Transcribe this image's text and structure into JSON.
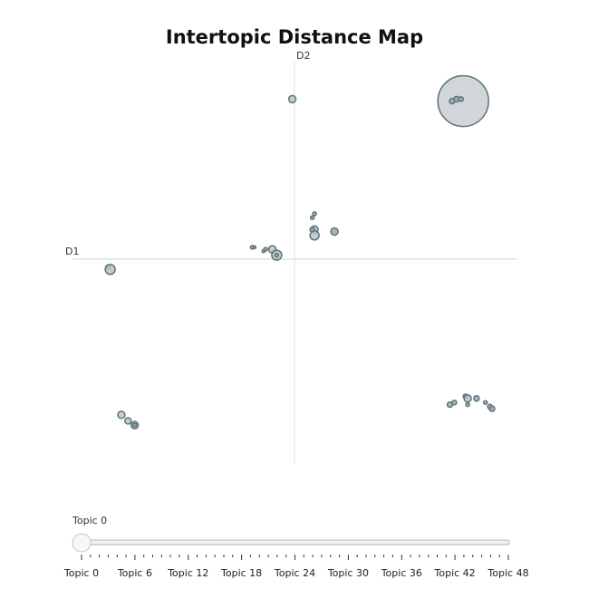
{
  "chart_data": {
    "type": "scatter",
    "title": "Intertopic Distance Map",
    "x_axis_label": "D1",
    "y_axis_label": "D2",
    "xlim": [
      -10,
      10
    ],
    "ylim": [
      -10,
      10
    ],
    "grid": false,
    "points": [
      {
        "x": 7.6,
        "y": 8.0,
        "size": 28,
        "fill": "#c9cfd4"
      },
      {
        "x": 7.1,
        "y": 8.0,
        "size": 3,
        "fill": "#9aa8ae"
      },
      {
        "x": 7.3,
        "y": 8.1,
        "size": 3,
        "fill": "#9aa8ae"
      },
      {
        "x": 7.5,
        "y": 8.1,
        "size": 2.5,
        "fill": "#9aa8ae"
      },
      {
        "x": -0.1,
        "y": 8.1,
        "size": 4,
        "fill": "#b9c3c8"
      },
      {
        "x": 0.9,
        "y": 2.3,
        "size": 2,
        "fill": "#9aa8ae"
      },
      {
        "x": 0.8,
        "y": 2.1,
        "size": 2,
        "fill": "#9aa8ae"
      },
      {
        "x": 0.9,
        "y": 1.5,
        "size": 4,
        "fill": "#b9c3c8"
      },
      {
        "x": 0.9,
        "y": 1.2,
        "size": 5,
        "fill": "#b9c3c8"
      },
      {
        "x": 0.8,
        "y": 1.5,
        "size": 2.5,
        "fill": "#9aa8ae"
      },
      {
        "x": 1.8,
        "y": 1.4,
        "size": 4,
        "fill": "#9aa8ae"
      },
      {
        "x": -1.9,
        "y": 0.6,
        "size": 2,
        "fill": "#9aa8ae"
      },
      {
        "x": -1.8,
        "y": 0.6,
        "size": 1.5,
        "fill": "#9aa8ae"
      },
      {
        "x": -1.3,
        "y": 0.5,
        "size": 2,
        "fill": "#9aa8ae"
      },
      {
        "x": -1.4,
        "y": 0.4,
        "size": 1.5,
        "fill": "#9aa8ae"
      },
      {
        "x": -1.0,
        "y": 0.5,
        "size": 4,
        "fill": "#b9c3c8"
      },
      {
        "x": -0.8,
        "y": 0.2,
        "size": 5.5,
        "fill": "#b9c3c8"
      },
      {
        "x": -0.8,
        "y": 0.2,
        "size": 2,
        "fill": "#9aa8ae"
      },
      {
        "x": -8.4,
        "y": -0.4,
        "size": 2.5,
        "fill": "#9aa8ae"
      },
      {
        "x": -8.3,
        "y": -0.5,
        "size": 5.5,
        "fill": "#b9c3c8"
      },
      {
        "x": -7.8,
        "y": -7.6,
        "size": 4,
        "fill": "#b9c3c8"
      },
      {
        "x": -7.5,
        "y": -7.9,
        "size": 3.5,
        "fill": "#b9c3c8"
      },
      {
        "x": -7.2,
        "y": -8.1,
        "size": 4,
        "fill": "#9aa8ae"
      },
      {
        "x": -7.2,
        "y": -8.1,
        "size": 2,
        "fill": "#9aa8ae"
      },
      {
        "x": 7.0,
        "y": -7.1,
        "size": 3,
        "fill": "#9aa8ae"
      },
      {
        "x": 7.2,
        "y": -7.0,
        "size": 2.5,
        "fill": "#9aa8ae"
      },
      {
        "x": 7.7,
        "y": -6.7,
        "size": 2.5,
        "fill": "#9aa8ae"
      },
      {
        "x": 7.8,
        "y": -6.8,
        "size": 4,
        "fill": "#b9c3c8"
      },
      {
        "x": 7.8,
        "y": -7.1,
        "size": 2,
        "fill": "#9aa8ae"
      },
      {
        "x": 8.2,
        "y": -6.8,
        "size": 3,
        "fill": "#9aa8ae"
      },
      {
        "x": 8.6,
        "y": -7.0,
        "size": 2,
        "fill": "#9aa8ae"
      },
      {
        "x": 8.8,
        "y": -7.2,
        "size": 2.5,
        "fill": "#9aa8ae"
      },
      {
        "x": 8.9,
        "y": -7.3,
        "size": 3,
        "fill": "#9aa8ae"
      }
    ],
    "slider": {
      "current_label": "Topic 0",
      "value": 0,
      "min": 0,
      "max": 48,
      "tick_labels": [
        "Topic 0",
        "Topic 6",
        "Topic 12",
        "Topic 18",
        "Topic 24",
        "Topic 30",
        "Topic 36",
        "Topic 42",
        "Topic 48"
      ]
    },
    "colors": {
      "bubble_stroke": "#5f7478",
      "axis_line": "#d0d0d0",
      "slider_track": "#e6ecf2",
      "slider_border": "#a9b6c2"
    }
  }
}
